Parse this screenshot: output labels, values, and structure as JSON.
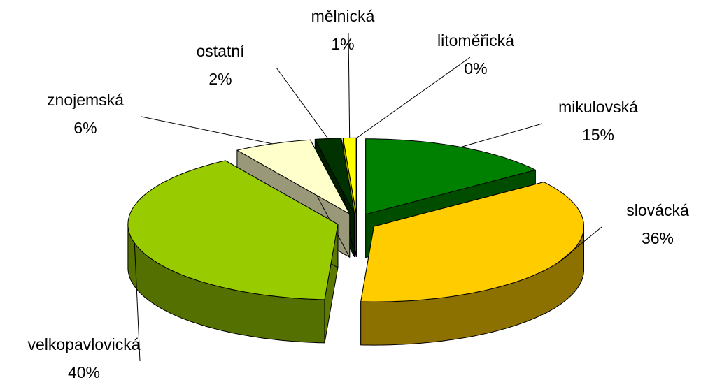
{
  "chart_data": {
    "type": "pie3d",
    "categories": [
      "litoměřická",
      "mikulovská",
      "slovácká",
      "velkopavlovická",
      "znojemská",
      "ostatní",
      "mělnická"
    ],
    "values": [
      0,
      15,
      36,
      40,
      6,
      2,
      1
    ],
    "value_labels": [
      "0%",
      "15%",
      "36%",
      "40%",
      "6%",
      "2%",
      "1%"
    ],
    "colors": [
      "#993300",
      "#008000",
      "#ffcc00",
      "#99cc00",
      "#ffffcc",
      "#003300",
      "#ffff00"
    ]
  }
}
